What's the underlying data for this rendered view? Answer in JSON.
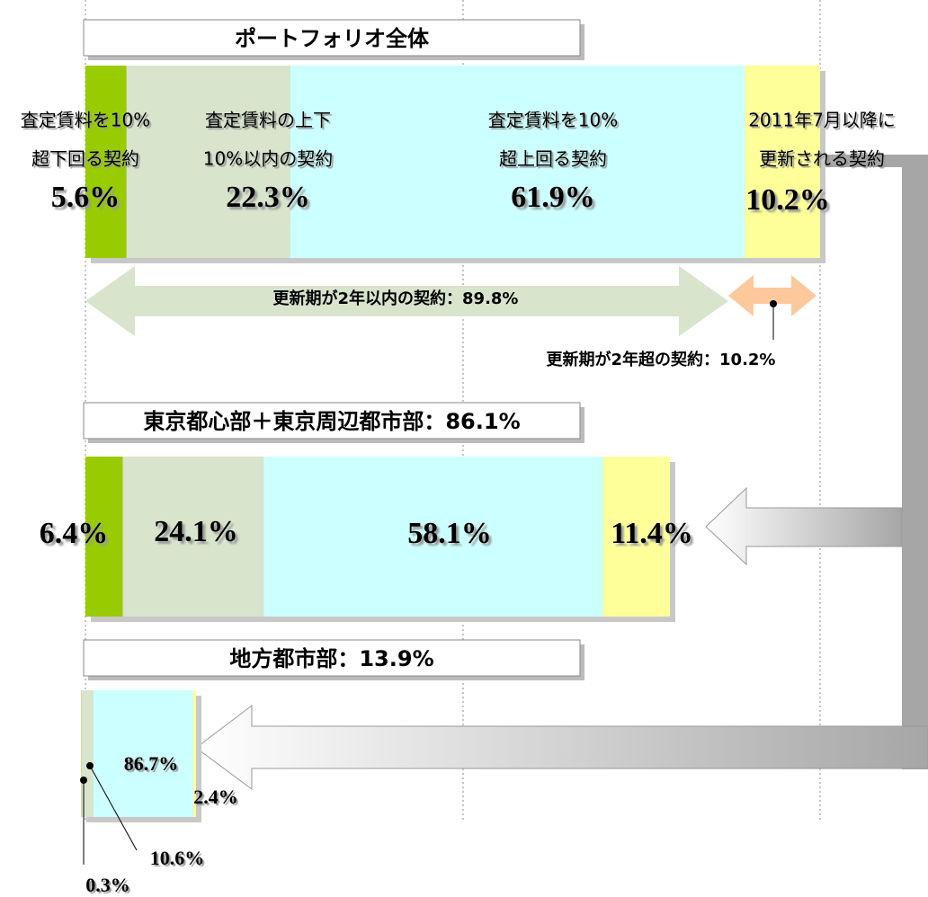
{
  "chart_data": [
    {
      "type": "bar",
      "title": "ポートフォリオ全体",
      "series": [
        {
          "name": [
            "査定賃料を10%",
            "超下回る契約"
          ],
          "color": "#99cc00",
          "values": [
            5.6
          ],
          "value_labels": [
            "5.6%"
          ]
        },
        {
          "name": [
            "査定賃料の上下",
            "10%以内の契約"
          ],
          "color": "#d8e4cc",
          "values": [
            22.3
          ],
          "value_labels": [
            "22.3%"
          ]
        },
        {
          "name": [
            "査定賃料を10%",
            "超上回る契約"
          ],
          "color": "#ccffff",
          "values": [
            61.9
          ],
          "value_labels": [
            "61.9%"
          ]
        },
        {
          "name": [
            "2011年7月以降に",
            "更新される契約"
          ],
          "color": "#ffff99",
          "values": [
            10.2
          ],
          "value_labels": [
            "10.2%"
          ]
        }
      ],
      "annotations": [
        "更新期が2年以内の契約：89.8%",
        "更新期が2年超の契約：10.2%"
      ]
    },
    {
      "type": "bar",
      "title": "東京都心部＋東京周辺都市部：86.1%",
      "series": [
        {
          "color": "#99cc00",
          "values": [
            6.4
          ],
          "value_labels": [
            "6.4%"
          ]
        },
        {
          "color": "#d8e4cc",
          "values": [
            24.1
          ],
          "value_labels": [
            "24.1%"
          ]
        },
        {
          "color": "#ccffff",
          "values": [
            58.1
          ],
          "value_labels": [
            "58.1%"
          ]
        },
        {
          "color": "#ffff99",
          "values": [
            11.4
          ],
          "value_labels": [
            "11.4%"
          ]
        }
      ]
    },
    {
      "type": "bar",
      "title": "地方都市部：13.9%",
      "series": [
        {
          "color": "#99cc00",
          "values": [
            0.3
          ],
          "value_labels": [
            "0.3%"
          ]
        },
        {
          "color": "#d8e4cc",
          "values": [
            10.6
          ],
          "value_labels": [
            "10.6%"
          ]
        },
        {
          "color": "#ccffff",
          "values": [
            86.7
          ],
          "value_labels": [
            "86.7%"
          ]
        },
        {
          "color": "#ffff99",
          "values": [
            2.4
          ],
          "value_labels": [
            "2.4%"
          ]
        }
      ]
    }
  ]
}
